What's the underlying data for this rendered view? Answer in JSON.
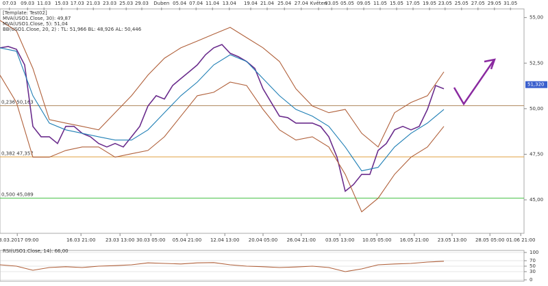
{
  "chart_data": [
    {
      "type": "line",
      "legend_lines": [
        "[Template: Test02]",
        "MVA(USO1.Close, 30): 49,87",
        "MVA(USO1.Close, 5): 51,04",
        "BB(USO1.Close, 20, 2) : TL: 51,966  BL: 48,926  AL: 50,446"
      ],
      "xlim": [
        0,
        127.5
      ],
      "ylim": [
        43.2,
        55.4
      ],
      "yticks": [
        {
          "value": 55,
          "label": "55,00"
        },
        {
          "value": 52.5,
          "label": "52,50"
        },
        {
          "value": 50,
          "label": "50,00"
        },
        {
          "value": 47.5,
          "label": "47,50"
        },
        {
          "value": 45,
          "label": "45,00"
        }
      ],
      "top_ticks": [
        {
          "value": 2.3,
          "label": "07.03"
        },
        {
          "value": 6.7,
          "label": "09.03"
        },
        {
          "value": 10.7,
          "label": "11.03"
        },
        {
          "value": 15,
          "label": "15.03"
        },
        {
          "value": 18.8,
          "label": "17.03"
        },
        {
          "value": 22.7,
          "label": "21.03"
        },
        {
          "value": 26.7,
          "label": "23.03"
        },
        {
          "value": 30.7,
          "label": "25.03"
        },
        {
          "value": 34.5,
          "label": "29.03"
        },
        {
          "value": 39.3,
          "label": "Duben"
        },
        {
          "value": 43.7,
          "label": "05.04"
        },
        {
          "value": 47.7,
          "label": "07.04"
        },
        {
          "value": 51.7,
          "label": "11.04"
        },
        {
          "value": 55.8,
          "label": "13.04"
        },
        {
          "value": 61,
          "label": "19.04"
        },
        {
          "value": 65,
          "label": "21.04"
        },
        {
          "value": 69.2,
          "label": "25.04"
        },
        {
          "value": 73.3,
          "label": "27.04"
        },
        {
          "value": 77.5,
          "label": "Květen"
        },
        {
          "value": 80.7,
          "label": "03.05"
        },
        {
          "value": 84.5,
          "label": "05.05"
        },
        {
          "value": 88.5,
          "label": "09.05"
        },
        {
          "value": 92.5,
          "label": "11.05"
        },
        {
          "value": 96.5,
          "label": "15.05"
        },
        {
          "value": 100.5,
          "label": "17.05"
        },
        {
          "value": 104.5,
          "label": "19.05"
        },
        {
          "value": 108.3,
          "label": "23.05"
        },
        {
          "value": 112.3,
          "label": "25.05"
        },
        {
          "value": 116.3,
          "label": "27.05"
        },
        {
          "value": 120.3,
          "label": "29.05"
        },
        {
          "value": 124.2,
          "label": "31.05"
        }
      ],
      "xticks": [
        {
          "value": 4.2,
          "label": "03.03.2017 09:00"
        },
        {
          "value": 19.7,
          "label": "16.03 21:00"
        },
        {
          "value": 29.2,
          "label": "23.03 13:00"
        },
        {
          "value": 36.7,
          "label": "30.03 05:00"
        },
        {
          "value": 45.5,
          "label": "05.04 21:00"
        },
        {
          "value": 54.7,
          "label": "12.04 13:00"
        },
        {
          "value": 64,
          "label": "20.04 05:00"
        },
        {
          "value": 73.3,
          "label": "26.04 21:00"
        },
        {
          "value": 82.7,
          "label": "03.05 13:00"
        },
        {
          "value": 91.7,
          "label": "10.05 05:00"
        },
        {
          "value": 100.8,
          "label": "16.05 21:00"
        },
        {
          "value": 110,
          "label": "23.05 13:00"
        },
        {
          "value": 119.2,
          "label": "28.05 05:00"
        },
        {
          "value": 126.7,
          "label": "01.06 21:00"
        }
      ],
      "levels": [
        {
          "value": 50.163,
          "label": "0,236 50,163",
          "color": "#b08a60"
        },
        {
          "value": 47.357,
          "label": "0,382 47,357",
          "color": "#e0a040"
        },
        {
          "value": 45.089,
          "label": "0,500 45,089",
          "color": "#40c040"
        }
      ],
      "last_price": {
        "value": 51.32,
        "label": "51,320"
      },
      "series": [
        {
          "color": "#6a2c8c",
          "x": [
            0,
            2,
            4,
            6,
            8,
            10,
            12,
            14,
            16,
            18,
            20,
            22,
            24,
            26,
            28,
            30,
            32,
            34,
            36,
            38,
            40,
            42,
            44,
            46,
            48,
            50,
            52,
            54,
            56,
            58,
            60,
            62,
            64,
            66,
            68,
            70,
            72,
            74,
            76,
            78,
            80,
            82,
            84,
            86,
            88,
            90,
            92,
            94,
            96,
            98,
            100,
            102,
            104,
            106,
            108
          ],
          "values": [
            53.34,
            53.41,
            53.26,
            52.4,
            49.03,
            48.46,
            48.46,
            48.09,
            49.03,
            49.03,
            48.65,
            48.46,
            48.09,
            47.9,
            48.09,
            47.9,
            48.46,
            49.03,
            50.15,
            50.71,
            50.53,
            51.27,
            51.65,
            52.02,
            52.4,
            52.96,
            53.34,
            53.52,
            53.04,
            52.85,
            52.59,
            52.21,
            51.09,
            50.34,
            49.59,
            49.51,
            49.21,
            49.21,
            49.21,
            49.03,
            48.46,
            47.34,
            45.47,
            45.84,
            46.4,
            46.4,
            47.71,
            48.09,
            48.84,
            49.03,
            48.84,
            49.03,
            49.96,
            51.27,
            51.09
          ]
        },
        {
          "name": "MVA(USO1.Close, 30): 49,87",
          "color": "#1f7fb5",
          "x": [
            0,
            4,
            8,
            12,
            16,
            20,
            24,
            28,
            32,
            36,
            40,
            44,
            48,
            52,
            56,
            60,
            64,
            68,
            72,
            76,
            80,
            84,
            88,
            92,
            96,
            100,
            104,
            108
          ],
          "values": [
            53.34,
            53.15,
            50.71,
            49.21,
            48.84,
            48.65,
            48.46,
            48.28,
            48.28,
            48.84,
            49.78,
            50.71,
            51.46,
            52.4,
            52.96,
            52.59,
            51.65,
            50.71,
            49.96,
            49.59,
            49.03,
            47.9,
            46.59,
            46.78,
            47.9,
            48.65,
            49.21,
            49.96
          ]
        },
        {
          "color": "#b0603a",
          "x": [
            0,
            4,
            8,
            12,
            16,
            20,
            24,
            28,
            32,
            36,
            40,
            44,
            48,
            52,
            56,
            60,
            64,
            68,
            72,
            76,
            80,
            84,
            88,
            92,
            96,
            100,
            104,
            108
          ],
          "values": [
            54.84,
            54.27,
            52.21,
            49.4,
            49.21,
            49.03,
            48.84,
            49.78,
            50.71,
            51.84,
            52.77,
            53.34,
            53.71,
            54.09,
            54.46,
            53.9,
            53.34,
            52.59,
            51.09,
            50.15,
            49.78,
            49.96,
            48.65,
            47.9,
            49.78,
            50.34,
            50.71,
            52.02
          ]
        },
        {
          "color": "#b0603a",
          "x": [
            0,
            4,
            8,
            12,
            16,
            20,
            24,
            28,
            32,
            36,
            40,
            44,
            48,
            52,
            56,
            60,
            64,
            68,
            72,
            76,
            80,
            84,
            88,
            92,
            96,
            100,
            104,
            108
          ],
          "values": [
            51.84,
            50.34,
            47.34,
            47.34,
            47.71,
            47.9,
            47.9,
            47.34,
            47.53,
            47.71,
            48.46,
            49.59,
            50.71,
            50.9,
            51.46,
            51.27,
            49.96,
            48.84,
            48.28,
            48.46,
            47.9,
            46.4,
            44.34,
            45.09,
            46.4,
            47.34,
            47.9,
            49.03
          ]
        }
      ]
    },
    {
      "type": "line",
      "title": "RSI(USO1.Close, 14): 66,00",
      "xlim": [
        0,
        127.5
      ],
      "ylim": [
        0,
        100
      ],
      "yticks": [
        100,
        70,
        50,
        30,
        0
      ],
      "series": [
        {
          "color": "#b0603a",
          "x": [
            0,
            4,
            8,
            12,
            16,
            20,
            24,
            28,
            32,
            36,
            40,
            44,
            48,
            52,
            56,
            60,
            64,
            68,
            72,
            76,
            80,
            84,
            88,
            92,
            96,
            100,
            104,
            108
          ],
          "values": [
            55,
            50,
            35,
            45,
            48,
            45,
            50,
            52,
            55,
            62,
            60,
            58,
            62,
            63,
            55,
            50,
            48,
            45,
            47,
            50,
            45,
            30,
            40,
            55,
            58,
            60,
            65,
            68
          ]
        }
      ]
    }
  ]
}
